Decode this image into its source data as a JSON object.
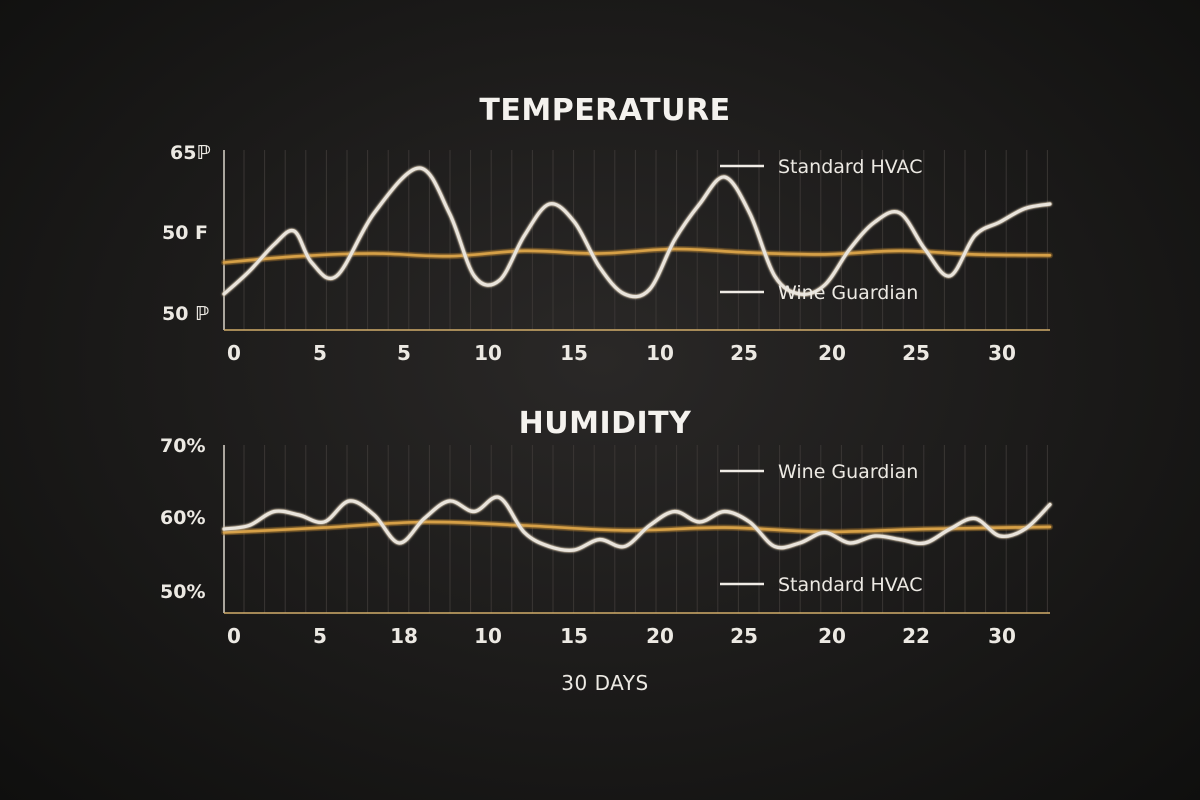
{
  "chart_data": [
    {
      "type": "line",
      "title": "TEMPERATURE",
      "x_tick_labels": [
        "0",
        "5",
        "5",
        "10",
        "15",
        "10",
        "25",
        "20",
        "25",
        "30"
      ],
      "y_tick_labels": [
        "65ℙ",
        "50 F",
        "50 ℙ"
      ],
      "xlim": [
        0,
        33
      ],
      "grid": "vertical",
      "legend_position": "right",
      "series": [
        {
          "name": "Standard HVAC",
          "color": "#e9e4dc",
          "x": [
            0,
            1,
            2,
            2.8,
            3.5,
            4.5,
            6,
            7.8,
            9,
            10,
            11,
            12,
            13,
            14,
            15,
            16,
            17,
            18,
            19,
            20,
            21,
            22,
            23,
            24,
            25,
            26,
            27,
            28,
            29,
            30,
            31,
            32,
            33
          ],
          "y": [
            49,
            51.5,
            54.5,
            56,
            52.5,
            51,
            58,
            63,
            58,
            51,
            50.5,
            55.5,
            59,
            57,
            52,
            49,
            49.5,
            55,
            59,
            62,
            58,
            51,
            49,
            50,
            54,
            57,
            58,
            54,
            51,
            55.5,
            57,
            58.5,
            59
          ]
        },
        {
          "name": "Wine Guardian",
          "color": "#d6a046",
          "x": [
            0,
            3,
            6,
            9,
            12,
            15,
            18,
            21,
            24,
            27,
            30,
            33
          ],
          "y": [
            52.5,
            53.2,
            53.5,
            53.2,
            53.8,
            53.5,
            54.0,
            53.6,
            53.4,
            53.8,
            53.4,
            53.3
          ]
        }
      ]
    },
    {
      "type": "line",
      "title": "HUMIDITY",
      "x_tick_labels": [
        "0",
        "5",
        "18",
        "10",
        "15",
        "20",
        "25",
        "20",
        "22",
        "30"
      ],
      "y_tick_labels": [
        "70%",
        "60%",
        "50%"
      ],
      "ylim": [
        48,
        72
      ],
      "xlim": [
        0,
        33
      ],
      "grid": "vertical",
      "legend_position": "right",
      "series": [
        {
          "name": "Standard HVAC",
          "color": "#e9e4dc",
          "x": [
            0,
            1,
            2,
            3,
            4,
            5,
            6,
            7,
            8,
            9,
            10,
            11,
            12,
            13,
            14,
            15,
            16,
            17,
            18,
            19,
            20,
            21,
            22,
            23,
            24,
            25,
            26,
            27,
            28,
            29,
            30,
            31,
            32,
            33
          ],
          "y": [
            60,
            60.5,
            62.5,
            62,
            61,
            64,
            62,
            58,
            61.5,
            64,
            62.5,
            64.5,
            59.5,
            57.5,
            57,
            58.5,
            57.5,
            60.5,
            62.5,
            61,
            62.5,
            61,
            57.5,
            58,
            59.5,
            58,
            59,
            58.5,
            58,
            60,
            61.5,
            59,
            60,
            63.5
          ]
        },
        {
          "name": "Wine Guardian",
          "color": "#d6a046",
          "x": [
            0,
            4,
            8,
            12,
            16,
            20,
            24,
            28,
            33
          ],
          "y": [
            59.5,
            60.2,
            61,
            60.5,
            59.8,
            60.2,
            59.6,
            60,
            60.3
          ]
        }
      ]
    }
  ],
  "x_axis_caption": "30 DAYS"
}
